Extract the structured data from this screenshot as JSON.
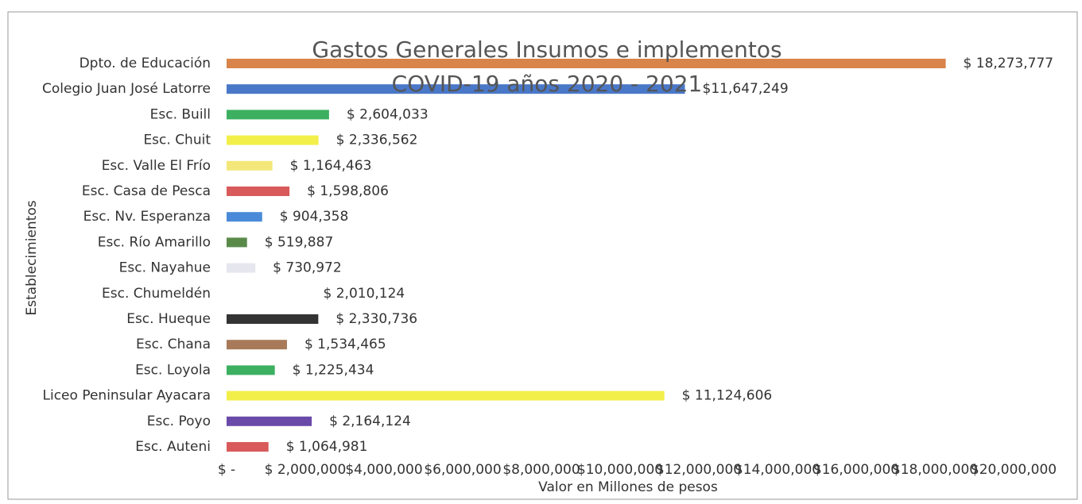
{
  "chart_data": {
    "type": "barh",
    "title": "Gastos Generales Insumos e implementos",
    "subtitle": "COVID-19  años 2020 - 2021",
    "xlabel": "Valor en Millones de pesos",
    "ylabel": "Establecimientos",
    "categories": [
      "Dpto. de Educación",
      "Colegio Juan José Latorre",
      "Esc. Buill",
      "Esc. Chuit",
      "Esc. Valle El Frío",
      "Esc. Casa de Pesca",
      "Esc. Nv. Esperanza",
      "Esc. Río Amarillo",
      "Esc. Nayahue",
      "Esc. Chumeldén",
      "Esc. Hueque",
      "Esc. Chana",
      "Esc. Loyola",
      "Liceo Peninsular Ayacara",
      "Esc. Poyo",
      "Esc. Auteni"
    ],
    "values": [
      18273777,
      11647249,
      2604033,
      2336562,
      1164463,
      1598806,
      904358,
      519887,
      730972,
      2010124,
      2330736,
      1534465,
      1225434,
      11124606,
      2164124,
      1064981
    ],
    "value_labels": [
      "$ 18,273,777",
      "$11,647,249",
      "$ 2,604,033",
      "$ 2,336,562",
      "$ 1,164,463",
      "$ 1,598,806",
      "$ 904,358",
      "$ 519,887",
      "$ 730,972",
      "$ 2,010,124",
      "$ 2,330,736",
      "$ 1,534,465",
      "$ 1,225,434",
      "$ 11,124,606",
      "$ 2,164,124",
      "$ 1,064,981"
    ],
    "colors": [
      "#d9844a",
      "#4a78c8",
      "#3cb060",
      "#f3ef4a",
      "#f3e77a",
      "#d95a5a",
      "#4a8ad8",
      "#5a8a4a",
      "#e6e6ee",
      "#ffffff",
      "#333333",
      "#a87a5a",
      "#3cb060",
      "#f3ef4a",
      "#6a4aa8",
      "#d95a5a"
    ],
    "xlim": [
      0,
      20000000
    ],
    "xticks": [
      {
        "value": 0,
        "label": "$ -"
      },
      {
        "value": 2000000,
        "label": "$ 2,000,000"
      },
      {
        "value": 4000000,
        "label": "$4,000,000"
      },
      {
        "value": 6000000,
        "label": "$6,000,000"
      },
      {
        "value": 8000000,
        "label": "$8,000,000"
      },
      {
        "value": 10000000,
        "label": "$10,000,000"
      },
      {
        "value": 12000000,
        "label": "$12,000,000"
      },
      {
        "value": 14000000,
        "label": "$14,000,000"
      },
      {
        "value": 16000000,
        "label": "$16,000,000"
      },
      {
        "value": 18000000,
        "label": "$18,000,000"
      },
      {
        "value": 20000000,
        "label": "$20,000,000"
      }
    ]
  }
}
